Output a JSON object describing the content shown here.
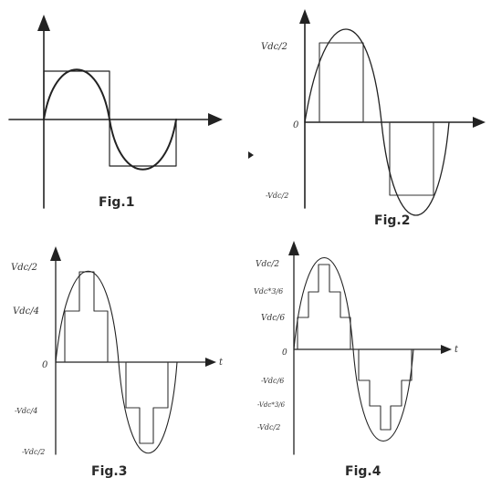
{
  "figures": [
    {
      "id": "fig1",
      "caption": "Fig.1",
      "labels": []
    },
    {
      "id": "fig2",
      "caption": "Fig.2",
      "labels": [
        "Vdc/2",
        "0",
        "-Vdc/2"
      ]
    },
    {
      "id": "fig3",
      "caption": "Fig.3",
      "labels": [
        "Vdc/2",
        "Vdc/4",
        "0",
        "-Vdc/4",
        "-Vdc/2"
      ],
      "axis_label": "t"
    },
    {
      "id": "fig4",
      "caption": "Fig.4",
      "labels": [
        "Vdc/2",
        "Vdc*3/6",
        "Vdc/6",
        "0",
        "-Vdc/6",
        "-Vdc*3/6",
        "-Vdc/2"
      ],
      "axis_label": "t"
    }
  ],
  "colors": {
    "ink": "#222222",
    "paper": "#ffffff"
  }
}
